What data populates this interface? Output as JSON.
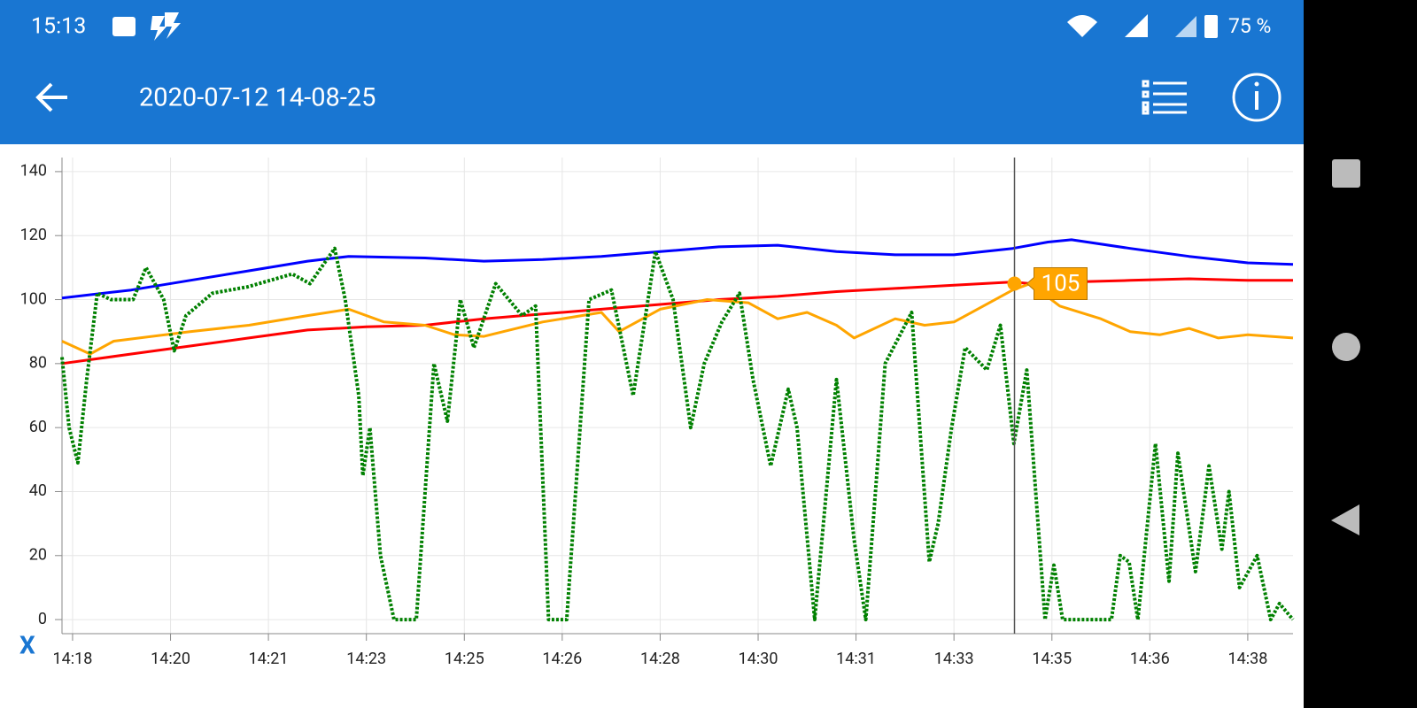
{
  "status_bar": {
    "time": "15:13",
    "battery": "75 %"
  },
  "app_bar": {
    "title": "2020-07-12 14-08-25"
  },
  "chart_data": {
    "type": "line",
    "xlabel": "X",
    "xlim": [
      17.82,
      38.77
    ],
    "ylim": [
      -4.4,
      144.4
    ],
    "yticks": [
      0,
      20,
      40,
      60,
      80,
      100,
      120,
      140
    ],
    "xticks": [
      {
        "value": 18,
        "label": "14:18"
      },
      {
        "value": 19.667,
        "label": "14:20"
      },
      {
        "value": 21.333,
        "label": "14:21"
      },
      {
        "value": 23,
        "label": "14:23"
      },
      {
        "value": 24.667,
        "label": "14:25"
      },
      {
        "value": 26.333,
        "label": "14:26"
      },
      {
        "value": 28,
        "label": "14:28"
      },
      {
        "value": 29.667,
        "label": "14:30"
      },
      {
        "value": 31.333,
        "label": "14:31"
      },
      {
        "value": 33,
        "label": "14:33"
      },
      {
        "value": 34.667,
        "label": "14:35"
      },
      {
        "value": 36.333,
        "label": "14:36"
      },
      {
        "value": 38,
        "label": "14:38"
      }
    ],
    "grid": true,
    "series": [
      {
        "color": "#0000ff",
        "x": [
          17.82,
          19,
          20,
          21,
          22,
          22.7,
          24,
          25,
          26,
          27,
          28,
          29,
          30,
          31,
          32,
          33,
          34,
          34.6,
          35,
          36,
          37,
          38,
          38.77
        ],
        "values": [
          100.5,
          103,
          106,
          109,
          112,
          113.5,
          113,
          112,
          112.5,
          113.5,
          115,
          116.5,
          117,
          115,
          114,
          114,
          116,
          118,
          118.7,
          116,
          113.5,
          111.5,
          111
        ]
      },
      {
        "color": "#ff0000",
        "x": [
          17.82,
          19,
          20,
          21,
          22,
          23,
          24,
          25,
          26,
          27,
          28,
          29,
          30,
          31,
          32,
          33,
          34,
          34.3,
          35,
          36,
          37,
          38,
          38.77
        ],
        "values": [
          80,
          83,
          85.5,
          88,
          90.5,
          91.5,
          92,
          94,
          95.5,
          97,
          98.5,
          100,
          101,
          102.5,
          103.5,
          104.5,
          105.5,
          105,
          105.5,
          106,
          106.5,
          106,
          106
        ]
      },
      {
        "color": "#ffa500",
        "x": [
          17.82,
          18.3,
          18.7,
          20,
          21,
          22,
          22.7,
          23.3,
          24,
          24.5,
          25,
          26,
          27,
          27.3,
          28,
          28.8,
          29.5,
          30,
          30.5,
          31,
          31.3,
          32,
          32.5,
          33,
          33.5,
          34,
          34.3,
          34.8,
          35.5,
          36,
          36.5,
          37,
          37.5,
          38,
          38.77
        ],
        "values": [
          87,
          83,
          87,
          90,
          92,
          95,
          97,
          93,
          92,
          89,
          88.5,
          93,
          96,
          90,
          97,
          100,
          99,
          94,
          96,
          92,
          88,
          94,
          92,
          93,
          98,
          103,
          105,
          98,
          94,
          90,
          89,
          91,
          88,
          89,
          88
        ]
      },
      {
        "color": "#008000",
        "x": [
          17.82,
          17.94,
          18.09,
          18.24,
          18.42,
          18.65,
          19.03,
          19.25,
          19.55,
          19.73,
          19.93,
          20.38,
          20.98,
          21.74,
          22.04,
          22.46,
          22.64,
          22.87,
          22.94,
          23.06,
          23.24,
          23.47,
          23.85,
          24.15,
          24.38,
          24.6,
          24.83,
          25.2,
          25.65,
          25.88,
          26.1,
          26.41,
          26.79,
          27.17,
          27.54,
          27.92,
          28.22,
          28.52,
          28.75,
          29.05,
          29.35,
          29.58,
          29.88,
          30.18,
          30.33,
          30.63,
          31.0,
          31.3,
          31.5,
          31.83,
          32.28,
          32.58,
          32.73,
          32.96,
          33.19,
          33.56,
          33.79,
          34.02,
          34.24,
          34.55,
          34.7,
          34.85,
          35.68,
          35.83,
          35.98,
          36.13,
          36.43,
          36.66,
          36.81,
          37.11,
          37.34,
          37.56,
          37.68,
          37.86,
          38.16,
          38.39,
          38.54,
          38.77
        ],
        "values": [
          82,
          60,
          49,
          75,
          102,
          100,
          100,
          110,
          100,
          84,
          95,
          102,
          104,
          108,
          105,
          116,
          100,
          70,
          45,
          60,
          20,
          0,
          0,
          80,
          62,
          100,
          85,
          105,
          95,
          98,
          0,
          0,
          100,
          103,
          70,
          115,
          100,
          60,
          80,
          93,
          102,
          75,
          48,
          72,
          60,
          0,
          75,
          25,
          0,
          80,
          96,
          18,
          30,
          60,
          85,
          78,
          92,
          55,
          78,
          0,
          17,
          0,
          0,
          20,
          18,
          0,
          55,
          12,
          52,
          15,
          48,
          22,
          40,
          10,
          20,
          0,
          5,
          0
        ],
        "dashed": true
      }
    ],
    "cursor": {
      "x": 34.03,
      "series": 2,
      "value": 105
    }
  }
}
